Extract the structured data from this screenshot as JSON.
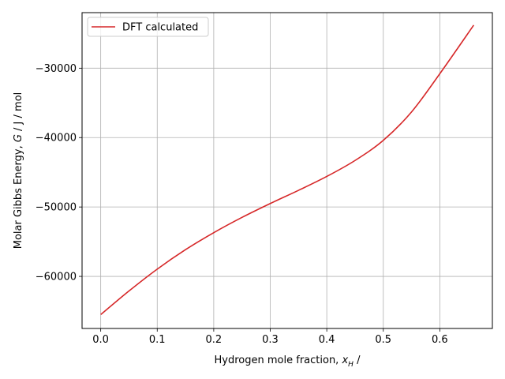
{
  "chart_data": {
    "type": "line",
    "title": "",
    "xlabel": "Hydrogen mole fraction, x_H /",
    "xlabel_parts": {
      "main": "Hydrogen mole fraction, ",
      "var": "x",
      "sub": "H",
      "tail": " /"
    },
    "ylabel": "Molar Gibbs Energy, G / J / mol",
    "ylabel_parts": {
      "main": "Molar Gibbs Energy, ",
      "var": "G",
      "tail": " / J / mol"
    },
    "xlim": [
      -0.033,
      0.693
    ],
    "ylim": [
      -67500,
      -22000
    ],
    "xticks": [
      0.0,
      0.1,
      0.2,
      0.3,
      0.4,
      0.5,
      0.6
    ],
    "xtick_labels": [
      "0.0",
      "0.1",
      "0.2",
      "0.3",
      "0.4",
      "0.5",
      "0.6"
    ],
    "yticks": [
      -60000,
      -50000,
      -40000,
      -30000
    ],
    "ytick_labels": [
      "−60000",
      "−50000",
      "−40000",
      "−30000"
    ],
    "grid": true,
    "legend_position": "top-left",
    "series": [
      {
        "name": "DFT calculated",
        "color": "#d62728",
        "x": [
          0.0,
          0.05,
          0.1,
          0.15,
          0.2,
          0.25,
          0.3,
          0.35,
          0.4,
          0.45,
          0.5,
          0.55,
          0.6,
          0.66
        ],
        "y": [
          -65500,
          -62100,
          -58950,
          -56150,
          -53700,
          -51500,
          -49500,
          -47600,
          -45600,
          -43300,
          -40400,
          -36300,
          -30800,
          -23800
        ]
      }
    ]
  }
}
